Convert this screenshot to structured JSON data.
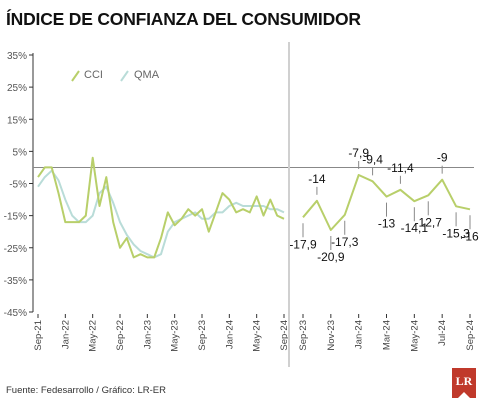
{
  "title": "ÍNDICE DE CONFIANZA DEL CONSUMIDOR",
  "source": "Fuente: Fedesarrollo / Gráfico: LR-ER",
  "logo_text": "LR",
  "colors": {
    "cci": "#b8cf6a",
    "qma": "#b9dcd8",
    "axis": "#333333",
    "grid": "#888888"
  },
  "chart_data": [
    {
      "type": "line",
      "xlabel": "",
      "ylabel": "",
      "ylim": [
        -45,
        35
      ],
      "yticks": [
        "35%",
        "25%",
        "15%",
        "5%",
        "-5%",
        "-15%",
        "-25%",
        "-35%",
        "-45%"
      ],
      "ytick_values": [
        35,
        25,
        15,
        5,
        -5,
        -15,
        -25,
        -35,
        -45
      ],
      "xtick_labels": [
        "Sep-21",
        "Jan-22",
        "May-22",
        "Sep-22",
        "Jan-23",
        "May-23",
        "Sep-23",
        "Jan-24",
        "May-24",
        "Sep-24"
      ],
      "xtick_index": [
        0,
        4,
        8,
        12,
        16,
        20,
        24,
        28,
        32,
        36
      ],
      "zero_line": true,
      "legend_position": "top-left",
      "series": [
        {
          "name": "CCI",
          "values": [
            -3,
            0,
            0,
            -8,
            -17,
            -17,
            -17,
            -15,
            3,
            -12,
            -3,
            -17,
            -25,
            -22,
            -28,
            -27,
            -28,
            -28,
            -22,
            -14,
            -18,
            -16,
            -13,
            -15,
            -13,
            -20,
            -14,
            -8,
            -10,
            -14,
            -13,
            -14,
            -9,
            -15,
            -10,
            -15,
            -16
          ]
        },
        {
          "name": "QMA",
          "values": [
            -6,
            -3,
            -1,
            -4,
            -10,
            -15,
            -17,
            -17,
            -15,
            -8,
            -6,
            -11,
            -17,
            -21,
            -24,
            -26,
            -27,
            -28,
            -27,
            -20,
            -17,
            -16,
            -15,
            -14,
            -16,
            -16,
            -14,
            -14,
            -12,
            -11,
            -12,
            -12,
            -12,
            -12,
            -13,
            -13,
            -14
          ]
        }
      ]
    },
    {
      "type": "line",
      "xlabel": "",
      "ylabel": "",
      "xtick_labels": [
        "Sep-23",
        "Nov-23",
        "Jan-24",
        "Mar-24",
        "May-24",
        "Jul-24",
        "Sep-24"
      ],
      "series": [
        {
          "name": "CCI",
          "x": [
            "Sep-23",
            "Oct-23",
            "Nov-23",
            "Dec-23",
            "Jan-24",
            "Feb-24",
            "Mar-24",
            "Apr-24",
            "May-24",
            "Jun-24",
            "Jul-24",
            "Aug-24",
            "Sep-24"
          ],
          "values": [
            -17.9,
            -14,
            -20.9,
            -17.3,
            -7.9,
            -9.4,
            -13,
            -11.4,
            -14.1,
            -12.7,
            -9,
            -15.3,
            -16
          ],
          "labels": [
            "-17,9",
            "-14",
            "-20,9",
            "-17,3",
            "-7,9",
            "-9,4",
            "-13",
            "-11,4",
            "-14,1",
            "-12,7",
            "-9",
            "-15,3",
            "-16"
          ]
        }
      ]
    }
  ]
}
